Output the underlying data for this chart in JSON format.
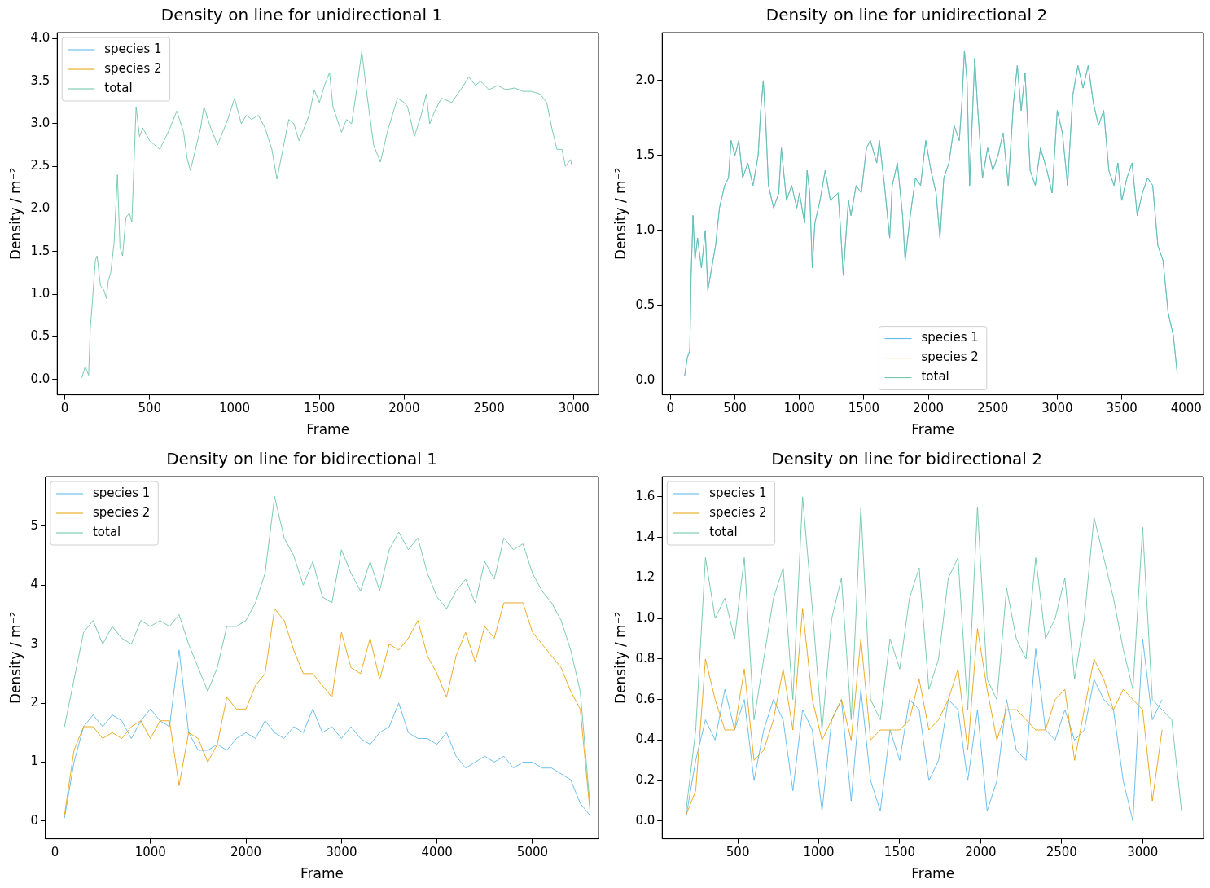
{
  "chart_data": [
    {
      "type": "line",
      "title": "Density on line for unidirectional 1",
      "xlabel": "Frame",
      "ylabel": "Density / m⁻²",
      "legend": "top left",
      "xlim": [
        -45,
        3145
      ],
      "xticks": [
        0,
        500,
        1000,
        1500,
        2000,
        2500,
        3000
      ],
      "ylim": [
        -0.18,
        4.07
      ],
      "yticks": [
        {
          "value": 0,
          "label": "0.0"
        },
        0.5,
        {
          "value": 1,
          "label": "1.0"
        },
        1.5,
        {
          "value": 2,
          "label": "2.0"
        },
        2.5,
        {
          "value": 3,
          "label": "3.0"
        },
        3.5,
        {
          "value": 4,
          "label": "4.0"
        }
      ],
      "x": [
        100,
        120,
        140,
        150,
        160,
        180,
        190,
        210,
        230,
        245,
        255,
        270,
        290,
        310,
        325,
        340,
        360,
        380,
        395,
        420,
        440,
        460,
        500,
        560,
        620,
        660,
        700,
        720,
        740,
        800,
        820,
        860,
        900,
        960,
        1000,
        1040,
        1070,
        1100,
        1140,
        1180,
        1220,
        1250,
        1290,
        1320,
        1350,
        1380,
        1420,
        1440,
        1470,
        1500,
        1530,
        1560,
        1580,
        1630,
        1660,
        1690,
        1720,
        1750,
        1780,
        1820,
        1860,
        1900,
        1930,
        1960,
        2000,
        2020,
        2060,
        2100,
        2130,
        2150,
        2180,
        2220,
        2280,
        2350,
        2380,
        2420,
        2450,
        2500,
        2550,
        2600,
        2650,
        2700,
        2750,
        2800,
        2840,
        2870,
        2900,
        2930,
        2950,
        2980,
        2990
      ],
      "series": [
        {
          "name": "species 1",
          "color": "#56b4e9",
          "values": [
            null,
            null,
            null,
            null,
            null,
            null,
            null,
            null,
            null,
            null,
            null,
            null,
            null,
            null,
            null,
            null,
            null,
            null,
            null,
            null,
            null,
            null,
            null,
            null,
            null,
            null,
            null,
            null,
            null,
            null,
            null,
            null,
            null,
            null,
            null,
            null,
            null,
            null,
            null,
            null,
            null,
            null,
            null,
            null,
            null,
            null,
            null,
            null,
            null,
            null,
            null,
            null,
            null,
            null,
            null,
            null,
            null,
            null,
            null,
            null,
            null,
            null,
            null,
            null,
            null,
            null,
            null,
            null,
            null,
            null,
            null,
            null,
            null,
            null,
            null,
            null,
            null,
            null,
            null,
            null,
            null,
            null,
            null,
            null,
            null,
            null,
            null,
            null,
            null,
            null,
            null
          ]
        },
        {
          "name": "species 2",
          "color": "#e69f00",
          "values": [
            null,
            null,
            null,
            null,
            null,
            null,
            null,
            null,
            null,
            null,
            null,
            null,
            null,
            null,
            null,
            null,
            null,
            null,
            null,
            null,
            null,
            null,
            null,
            null,
            null,
            null,
            null,
            null,
            null,
            null,
            null,
            null,
            null,
            null,
            null,
            null,
            null,
            null,
            null,
            null,
            null,
            null,
            null,
            null,
            null,
            null,
            null,
            null,
            null,
            null,
            null,
            null,
            null,
            null,
            null,
            null,
            null,
            null,
            null,
            null,
            null,
            null,
            null,
            null,
            null,
            null,
            null,
            null,
            null,
            null,
            null,
            null,
            null,
            null,
            null,
            null,
            null,
            null,
            null,
            null,
            null,
            null,
            null,
            null,
            null,
            null,
            null,
            null,
            null,
            null,
            null
          ]
        },
        {
          "name": "total",
          "color": "#66c2a5",
          "values": [
            0.02,
            0.15,
            0.05,
            0.6,
            0.85,
            1.4,
            1.45,
            1.1,
            1.05,
            0.95,
            1.15,
            1.25,
            1.6,
            2.4,
            1.55,
            1.45,
            1.9,
            1.95,
            1.85,
            3.2,
            2.85,
            2.95,
            2.8,
            2.7,
            2.95,
            3.15,
            2.9,
            2.6,
            2.45,
            2.95,
            3.2,
            2.95,
            2.75,
            3.05,
            3.3,
            3.0,
            3.1,
            3.05,
            3.1,
            2.95,
            2.7,
            2.35,
            2.75,
            3.05,
            3.0,
            2.8,
            3.0,
            3.1,
            3.4,
            3.25,
            3.45,
            3.6,
            3.2,
            2.9,
            3.05,
            3.0,
            3.4,
            3.85,
            3.35,
            2.75,
            2.55,
            2.9,
            3.1,
            3.3,
            3.25,
            3.2,
            2.85,
            3.1,
            3.35,
            3.0,
            3.15,
            3.3,
            3.25,
            3.45,
            3.55,
            3.45,
            3.5,
            3.4,
            3.45,
            3.4,
            3.42,
            3.38,
            3.38,
            3.35,
            3.25,
            2.95,
            2.7,
            2.7,
            2.5,
            2.58,
            2.5
          ]
        }
      ]
    },
    {
      "type": "line",
      "title": "Density on line for unidirectional 2",
      "xlabel": "Frame",
      "ylabel": "Density / m⁻²",
      "legend": "bottom",
      "xlim": [
        -64,
        4134
      ],
      "xticks": [
        0,
        500,
        1000,
        1500,
        2000,
        2500,
        3000,
        3500,
        4000
      ],
      "ylim": [
        -0.096,
        2.32
      ],
      "yticks": [
        {
          "value": 0,
          "label": "0.0"
        },
        0.5,
        {
          "value": 1,
          "label": "1.0"
        },
        1.5,
        {
          "value": 2,
          "label": "2.0"
        }
      ],
      "x": [
        110,
        130,
        150,
        160,
        175,
        190,
        210,
        240,
        270,
        290,
        320,
        350,
        380,
        420,
        450,
        470,
        500,
        530,
        560,
        600,
        640,
        680,
        700,
        720,
        740,
        760,
        800,
        840,
        860,
        900,
        940,
        980,
        1000,
        1040,
        1060,
        1080,
        1100,
        1120,
        1160,
        1200,
        1240,
        1300,
        1320,
        1340,
        1380,
        1400,
        1440,
        1480,
        1520,
        1550,
        1600,
        1620,
        1660,
        1700,
        1720,
        1760,
        1800,
        1820,
        1860,
        1900,
        1940,
        1980,
        2020,
        2060,
        2090,
        2120,
        2160,
        2200,
        2240,
        2260,
        2280,
        2300,
        2320,
        2360,
        2380,
        2420,
        2460,
        2500,
        2540,
        2580,
        2620,
        2660,
        2690,
        2720,
        2750,
        2790,
        2830,
        2870,
        2920,
        2960,
        3000,
        3040,
        3080,
        3120,
        3160,
        3200,
        3240,
        3280,
        3320,
        3360,
        3400,
        3440,
        3470,
        3500,
        3540,
        3580,
        3620,
        3660,
        3700,
        3740,
        3780,
        3820,
        3860,
        3900,
        3930
      ],
      "series": [
        {
          "name": "species 1",
          "color": "#56b4e9",
          "values": [
            0.03,
            0.15,
            0.2,
            0.7,
            1.1,
            0.8,
            0.95,
            0.75,
            1.0,
            0.6,
            0.75,
            0.9,
            1.15,
            1.3,
            1.35,
            1.6,
            1.5,
            1.6,
            1.35,
            1.45,
            1.3,
            1.5,
            1.8,
            2.0,
            1.7,
            1.3,
            1.15,
            1.25,
            1.55,
            1.2,
            1.3,
            1.15,
            1.25,
            1.05,
            1.4,
            1.25,
            0.75,
            1.05,
            1.2,
            1.4,
            1.2,
            1.25,
            1.0,
            0.7,
            1.2,
            1.1,
            1.3,
            1.25,
            1.55,
            1.6,
            1.45,
            1.6,
            1.3,
            0.95,
            1.3,
            1.45,
            1.1,
            0.8,
            1.1,
            1.35,
            1.3,
            1.6,
            1.4,
            1.25,
            0.95,
            1.35,
            1.45,
            1.7,
            1.6,
            1.85,
            2.2,
            2.0,
            1.3,
            2.15,
            1.85,
            1.35,
            1.55,
            1.4,
            1.5,
            1.65,
            1.3,
            1.85,
            2.1,
            1.8,
            2.05,
            1.4,
            1.3,
            1.55,
            1.4,
            1.25,
            1.8,
            1.65,
            1.3,
            1.9,
            2.1,
            1.95,
            2.1,
            1.85,
            1.7,
            1.8,
            1.4,
            1.3,
            1.45,
            1.2,
            1.35,
            1.45,
            1.1,
            1.25,
            1.35,
            1.3,
            0.9,
            0.8,
            0.45,
            0.3,
            0.05
          ]
        },
        {
          "name": "species 2",
          "color": "#e69f00",
          "values": [
            null,
            null,
            null,
            null,
            null,
            null,
            null,
            null,
            null,
            null,
            null,
            null,
            null,
            null,
            null,
            null,
            null,
            null,
            null,
            null,
            null,
            null,
            null,
            null,
            null,
            null,
            null,
            null,
            null,
            null,
            null,
            null,
            null,
            null,
            null,
            null,
            null,
            null,
            null,
            null,
            null,
            null,
            null,
            null,
            null,
            null,
            null,
            null,
            null,
            null,
            null,
            null,
            null,
            null,
            null,
            null,
            null,
            null,
            null,
            null,
            null,
            null,
            null,
            null,
            null,
            null,
            null,
            null,
            null,
            null,
            null,
            null,
            null,
            null,
            null,
            null,
            null,
            null,
            null,
            null,
            null,
            null,
            null,
            null,
            null,
            null,
            null,
            null,
            null,
            null,
            null,
            null,
            null,
            null,
            null,
            null,
            null,
            null,
            null,
            null,
            null,
            null,
            null,
            null,
            null,
            null,
            null,
            null,
            null,
            null,
            null,
            null,
            null,
            null,
            null
          ]
        },
        {
          "name": "total",
          "color": "#66c2a5",
          "values": [
            0.03,
            0.15,
            0.2,
            0.7,
            1.1,
            0.8,
            0.95,
            0.75,
            1.0,
            0.6,
            0.75,
            0.9,
            1.15,
            1.3,
            1.35,
            1.6,
            1.5,
            1.6,
            1.35,
            1.45,
            1.3,
            1.5,
            1.8,
            2.0,
            1.7,
            1.3,
            1.15,
            1.25,
            1.55,
            1.2,
            1.3,
            1.15,
            1.25,
            1.05,
            1.4,
            1.25,
            0.75,
            1.05,
            1.2,
            1.4,
            1.2,
            1.25,
            1.0,
            0.7,
            1.2,
            1.1,
            1.3,
            1.25,
            1.55,
            1.6,
            1.45,
            1.6,
            1.3,
            0.95,
            1.3,
            1.45,
            1.1,
            0.8,
            1.1,
            1.35,
            1.3,
            1.6,
            1.4,
            1.25,
            0.95,
            1.35,
            1.45,
            1.7,
            1.6,
            1.85,
            2.2,
            2.0,
            1.3,
            2.15,
            1.85,
            1.35,
            1.55,
            1.4,
            1.5,
            1.65,
            1.3,
            1.85,
            2.1,
            1.8,
            2.05,
            1.4,
            1.3,
            1.55,
            1.4,
            1.25,
            1.8,
            1.65,
            1.3,
            1.9,
            2.1,
            1.95,
            2.1,
            1.85,
            1.7,
            1.8,
            1.4,
            1.3,
            1.45,
            1.2,
            1.35,
            1.45,
            1.1,
            1.25,
            1.35,
            1.3,
            0.9,
            0.8,
            0.45,
            0.3,
            0.05
          ]
        }
      ]
    },
    {
      "type": "line",
      "title": "Density on line for bidirectional 1",
      "xlabel": "Frame",
      "ylabel": "Density / m⁻²",
      "legend": "top left",
      "xlim": [
        -98,
        5691
      ],
      "xticks": [
        0,
        1000,
        2000,
        3000,
        4000,
        5000
      ],
      "ylim": [
        -0.3,
        5.84
      ],
      "yticks": [
        0,
        1,
        2,
        3,
        4,
        5
      ],
      "x": [
        100,
        200,
        300,
        400,
        500,
        600,
        700,
        800,
        900,
        1000,
        1100,
        1200,
        1300,
        1400,
        1500,
        1600,
        1700,
        1800,
        1900,
        2000,
        2100,
        2200,
        2300,
        2400,
        2500,
        2600,
        2700,
        2800,
        2900,
        3000,
        3100,
        3200,
        3300,
        3400,
        3500,
        3600,
        3700,
        3800,
        3900,
        4000,
        4100,
        4200,
        4300,
        4400,
        4500,
        4600,
        4700,
        4800,
        4900,
        5000,
        5100,
        5200,
        5300,
        5400,
        5500,
        5600
      ],
      "series": [
        {
          "name": "species 1",
          "color": "#56b4e9",
          "values": [
            0.05,
            1.0,
            1.6,
            1.8,
            1.6,
            1.8,
            1.7,
            1.4,
            1.7,
            1.9,
            1.7,
            1.6,
            2.9,
            1.5,
            1.2,
            1.2,
            1.3,
            1.2,
            1.4,
            1.5,
            1.4,
            1.7,
            1.5,
            1.4,
            1.6,
            1.5,
            1.9,
            1.5,
            1.6,
            1.4,
            1.6,
            1.4,
            1.3,
            1.5,
            1.6,
            2.0,
            1.5,
            1.4,
            1.4,
            1.3,
            1.5,
            1.1,
            0.9,
            1.0,
            1.1,
            1.0,
            1.1,
            0.9,
            1.0,
            1.0,
            0.9,
            0.9,
            0.8,
            0.7,
            0.3,
            0.1
          ]
        },
        {
          "name": "species 2",
          "color": "#e69f00",
          "values": [
            0.1,
            1.2,
            1.6,
            1.6,
            1.4,
            1.5,
            1.4,
            1.6,
            1.7,
            1.4,
            1.7,
            1.7,
            0.6,
            1.5,
            1.4,
            1.0,
            1.3,
            2.1,
            1.9,
            1.9,
            2.3,
            2.5,
            3.6,
            3.4,
            2.9,
            2.5,
            2.5,
            2.3,
            2.1,
            3.2,
            2.6,
            2.5,
            3.1,
            2.4,
            3.0,
            2.9,
            3.1,
            3.4,
            2.8,
            2.5,
            2.1,
            2.8,
            3.2,
            2.7,
            3.3,
            3.1,
            3.7,
            3.7,
            3.7,
            3.2,
            3.0,
            2.8,
            2.6,
            2.2,
            1.9,
            0.2
          ]
        },
        {
          "name": "total",
          "color": "#66c2a5",
          "values": [
            1.6,
            2.4,
            3.2,
            3.4,
            3.0,
            3.3,
            3.1,
            3.0,
            3.4,
            3.3,
            3.4,
            3.3,
            3.5,
            3.0,
            2.6,
            2.2,
            2.6,
            3.3,
            3.3,
            3.4,
            3.7,
            4.2,
            5.5,
            4.8,
            4.5,
            4.0,
            4.4,
            3.8,
            3.7,
            4.6,
            4.2,
            3.9,
            4.4,
            3.9,
            4.6,
            4.9,
            4.6,
            4.8,
            4.2,
            3.8,
            3.6,
            3.9,
            4.1,
            3.7,
            4.4,
            4.1,
            4.8,
            4.6,
            4.7,
            4.2,
            3.9,
            3.7,
            3.4,
            2.9,
            2.2,
            0.3
          ]
        }
      ]
    },
    {
      "type": "line",
      "title": "Density on line for bidirectional 2",
      "xlabel": "Frame",
      "ylabel": "Density / m⁻²",
      "legend": "top left",
      "xlim": [
        33,
        3376
      ],
      "xticks": [
        500,
        1000,
        1500,
        2000,
        2500,
        3000
      ],
      "ylim": [
        -0.087,
        1.7
      ],
      "yticks": [
        {
          "value": 0,
          "label": "0.0"
        },
        0.2,
        0.4,
        0.6,
        0.8,
        {
          "value": 1,
          "label": "1.0"
        },
        1.2,
        1.4,
        1.6
      ],
      "x": [
        180,
        240,
        300,
        360,
        420,
        480,
        540,
        600,
        660,
        720,
        780,
        840,
        900,
        960,
        1020,
        1080,
        1140,
        1200,
        1260,
        1320,
        1380,
        1440,
        1500,
        1560,
        1620,
        1680,
        1740,
        1800,
        1860,
        1920,
        1980,
        2040,
        2100,
        2160,
        2220,
        2280,
        2340,
        2400,
        2460,
        2520,
        2580,
        2640,
        2700,
        2760,
        2820,
        2880,
        2940,
        3000,
        3060,
        3120,
        3180,
        3240
      ],
      "series": [
        {
          "name": "species 1",
          "color": "#56b4e9",
          "values": [
            0.02,
            0.3,
            0.5,
            0.4,
            0.65,
            0.45,
            0.6,
            0.2,
            0.45,
            0.6,
            0.5,
            0.15,
            0.55,
            0.45,
            0.05,
            0.5,
            0.6,
            0.1,
            0.65,
            0.2,
            0.05,
            0.45,
            0.3,
            0.6,
            0.55,
            0.2,
            0.3,
            0.6,
            0.55,
            0.2,
            0.55,
            0.05,
            0.2,
            0.6,
            0.35,
            0.3,
            0.85,
            0.45,
            0.4,
            0.55,
            0.4,
            0.45,
            0.7,
            0.6,
            0.55,
            0.2,
            0.0,
            0.9,
            0.5,
            0.6,
            null,
            null
          ]
        },
        {
          "name": "species 2",
          "color": "#e69f00",
          "values": [
            0.03,
            0.15,
            0.8,
            0.6,
            0.45,
            0.45,
            0.75,
            0.3,
            0.35,
            0.5,
            0.75,
            0.45,
            1.05,
            0.6,
            0.4,
            0.5,
            0.6,
            0.4,
            0.9,
            0.4,
            0.45,
            0.45,
            0.45,
            0.5,
            0.7,
            0.45,
            0.5,
            0.6,
            0.75,
            0.35,
            0.95,
            0.65,
            0.4,
            0.55,
            0.55,
            0.5,
            0.45,
            0.45,
            0.6,
            0.65,
            0.3,
            0.55,
            0.8,
            0.7,
            0.55,
            0.65,
            0.6,
            0.55,
            0.1,
            0.45,
            null,
            null
          ]
        },
        {
          "name": "total",
          "color": "#66c2a5",
          "values": [
            0.05,
            0.45,
            1.3,
            1.0,
            1.1,
            0.9,
            1.3,
            0.5,
            0.8,
            1.1,
            1.25,
            0.6,
            1.6,
            1.05,
            0.45,
            1.0,
            1.2,
            0.5,
            1.55,
            0.6,
            0.5,
            0.9,
            0.75,
            1.1,
            1.25,
            0.65,
            0.8,
            1.2,
            1.3,
            0.55,
            1.55,
            0.7,
            0.6,
            1.15,
            0.9,
            0.8,
            1.3,
            0.9,
            1.0,
            1.2,
            0.7,
            1.0,
            1.5,
            1.3,
            1.1,
            0.85,
            0.65,
            1.45,
            0.6,
            0.55,
            0.5,
            0.05
          ]
        }
      ]
    }
  ]
}
